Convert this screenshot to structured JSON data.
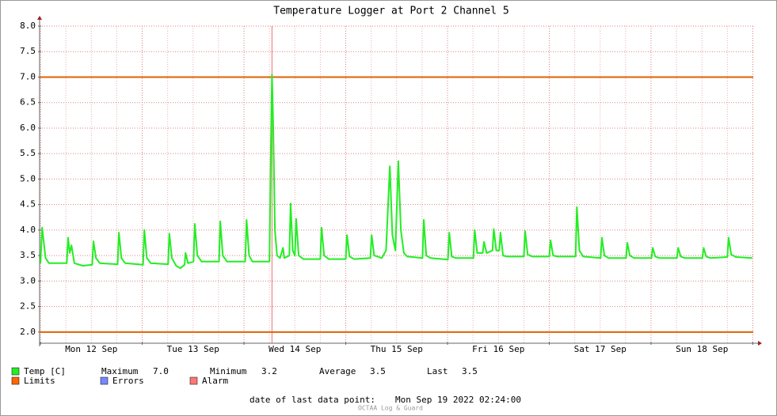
{
  "chart_data": {
    "type": "line",
    "title": "Temperature Logger at Port 2 Channel 5",
    "xlim": [
      -0.2,
      168.1
    ],
    "xticks": [
      {
        "value": 12,
        "label": "Mon 12 Sep"
      },
      {
        "value": 36,
        "label": "Tue 13 Sep"
      },
      {
        "value": 60,
        "label": "Wed 14 Sep"
      },
      {
        "value": 84,
        "label": "Thu 15 Sep"
      },
      {
        "value": 108,
        "label": "Fri 16 Sep"
      },
      {
        "value": 132,
        "label": "Sat 17 Sep"
      },
      {
        "value": 156,
        "label": "Sun 18 Sep"
      }
    ],
    "xgrid": [
      0,
      24,
      48,
      72,
      96,
      120,
      144,
      168
    ],
    "ylim": [
      1.78,
      8.0
    ],
    "yticks": [
      {
        "value": 2,
        "label": "2.0"
      },
      {
        "value": 2.5,
        "label": "2.5"
      },
      {
        "value": 3,
        "label": "3.0"
      },
      {
        "value": 3.5,
        "label": "3.5"
      },
      {
        "value": 4,
        "label": "4.0"
      },
      {
        "value": 4.5,
        "label": "4.5"
      },
      {
        "value": 5,
        "label": "5.0"
      },
      {
        "value": 5.5,
        "label": "5.5"
      },
      {
        "value": 6,
        "label": "6.0"
      },
      {
        "value": 6.5,
        "label": "6.5"
      },
      {
        "value": 7,
        "label": "7.0"
      },
      {
        "value": 7.5,
        "label": "7.5"
      },
      {
        "value": 8,
        "label": "8.0"
      }
    ],
    "grid": true,
    "limits": [
      7.0,
      2.0
    ],
    "limits_color": "#e06000",
    "alarm_x": 54.6,
    "alarm_color": "#f07070",
    "series": [
      {
        "name": "Temp [C]",
        "color": "#22ee22",
        "x": [
          0,
          0.4,
          1.2,
          2,
          6.2,
          6.5,
          6.9,
          7.3,
          8,
          10,
          12.2,
          12.5,
          13.1,
          14,
          18.2,
          18.5,
          19.1,
          20,
          24.2,
          24.5,
          25.1,
          26,
          30.1,
          30.4,
          31,
          32,
          33,
          34,
          34.2,
          34.8,
          36.1,
          36.4,
          37,
          38,
          42.1,
          42.4,
          43,
          44,
          48.3,
          48.6,
          49.2,
          50,
          54,
          54.3,
          54.6,
          54.9,
          55.3,
          55.8,
          56.5,
          57.2,
          57.5,
          58.7,
          59,
          59.5,
          60,
          60.3,
          60.9,
          62,
          66,
          66.3,
          66.9,
          68,
          72,
          72.3,
          72.9,
          74,
          77.8,
          78.1,
          78.7,
          79.5,
          80.5,
          81.5,
          82.4,
          83,
          83.7,
          84.4,
          85,
          85.7,
          86.5,
          90.1,
          90.4,
          91,
          92,
          96.1,
          96.4,
          97,
          98,
          102.1,
          102.4,
          103,
          104.3,
          104.6,
          105.2,
          106.6,
          106.9,
          107.5,
          108.2,
          108.5,
          109.1,
          110,
          114,
          114.3,
          114.9,
          116,
          120,
          120.3,
          120.9,
          122,
          126.2,
          126.5,
          127.1,
          128,
          132.1,
          132.4,
          133,
          134,
          138.1,
          138.4,
          139,
          140,
          144.1,
          144.4,
          145,
          146,
          150.1,
          150.4,
          151,
          152,
          156.1,
          156.4,
          157,
          158,
          162,
          162.3,
          162.9,
          164,
          167.9
        ],
        "values": [
          3.35,
          4.05,
          3.45,
          3.35,
          3.35,
          3.85,
          3.55,
          3.7,
          3.35,
          3.3,
          3.32,
          3.78,
          3.45,
          3.35,
          3.33,
          3.95,
          3.45,
          3.35,
          3.32,
          4.0,
          3.45,
          3.35,
          3.33,
          3.93,
          3.45,
          3.3,
          3.25,
          3.32,
          3.55,
          3.35,
          3.38,
          4.12,
          3.5,
          3.38,
          3.38,
          4.17,
          3.5,
          3.38,
          3.38,
          4.2,
          3.5,
          3.38,
          3.38,
          5.4,
          7.05,
          6.0,
          4.0,
          3.5,
          3.45,
          3.65,
          3.45,
          3.5,
          4.52,
          3.6,
          3.5,
          4.22,
          3.5,
          3.43,
          3.43,
          4.05,
          3.5,
          3.43,
          3.43,
          3.9,
          3.48,
          3.43,
          3.45,
          3.9,
          3.5,
          3.48,
          3.45,
          3.6,
          5.25,
          3.9,
          3.6,
          5.35,
          4.0,
          3.55,
          3.48,
          3.45,
          4.2,
          3.5,
          3.45,
          3.42,
          3.95,
          3.48,
          3.45,
          3.45,
          4.0,
          3.55,
          3.55,
          3.77,
          3.55,
          3.6,
          4.02,
          3.6,
          3.6,
          3.95,
          3.5,
          3.48,
          3.48,
          3.98,
          3.52,
          3.48,
          3.48,
          3.8,
          3.5,
          3.48,
          3.48,
          4.45,
          3.6,
          3.48,
          3.45,
          3.85,
          3.5,
          3.45,
          3.45,
          3.75,
          3.5,
          3.45,
          3.45,
          3.65,
          3.48,
          3.45,
          3.45,
          3.65,
          3.48,
          3.45,
          3.45,
          3.65,
          3.48,
          3.45,
          3.47,
          3.85,
          3.52,
          3.47,
          3.45
        ]
      }
    ],
    "legend": {
      "stats": [
        {
          "label": "Maximum",
          "value": "7.0"
        },
        {
          "label": "Minimum",
          "value": "3.2"
        },
        {
          "label": "Average",
          "value": "3.5"
        },
        {
          "label": "Last",
          "value": "3.5"
        }
      ],
      "items": [
        {
          "name": "Limits",
          "color": "#ff6600"
        },
        {
          "name": "Errors",
          "color": "#7788ff"
        },
        {
          "name": "Alarm",
          "color": "#ff7777"
        }
      ]
    },
    "footer": {
      "label": "date of last data point:",
      "value": "Mon Sep 19 2022 02:24:00"
    },
    "watermark": "OCTAA Log & Guard"
  }
}
